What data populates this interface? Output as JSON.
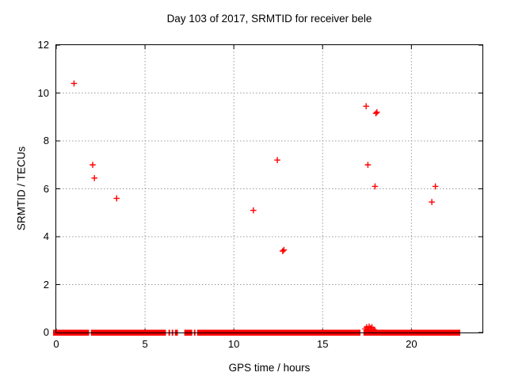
{
  "chart_data": {
    "type": "scatter",
    "title": "Day 103 of 2017, SRMTID for receiver bele",
    "xlabel": "GPS time / hours",
    "ylabel": "SRMTID / TECUs",
    "xlim": [
      0,
      24
    ],
    "ylim": [
      0,
      12
    ],
    "xticks": [
      0,
      5,
      10,
      15,
      20
    ],
    "yticks": [
      0,
      2,
      4,
      6,
      8,
      10,
      12
    ],
    "grid": true,
    "legend": "none",
    "marker": "plus",
    "marker_color": "#ff0000",
    "grid_color": "#9b9b9b",
    "border_color": "#000000",
    "series": [
      {
        "name": "SRMTID",
        "points": [
          [
            1.0,
            10.4
          ],
          [
            2.05,
            7.0
          ],
          [
            2.15,
            6.45
          ],
          [
            3.4,
            5.6
          ],
          [
            11.1,
            5.1
          ],
          [
            12.45,
            7.2
          ],
          [
            12.75,
            3.4
          ],
          [
            12.82,
            3.45
          ],
          [
            17.45,
            9.45
          ],
          [
            17.55,
            7.0
          ],
          [
            17.95,
            6.1
          ],
          [
            18.0,
            9.15
          ],
          [
            18.06,
            9.2
          ],
          [
            21.15,
            5.45
          ],
          [
            21.35,
            6.1
          ],
          [
            17.4,
            0.15
          ],
          [
            17.48,
            0.22
          ],
          [
            17.55,
            0.12
          ],
          [
            17.62,
            0.25
          ],
          [
            17.7,
            0.18
          ],
          [
            17.78,
            0.22
          ],
          [
            17.88,
            0.12
          ],
          [
            17.95,
            0.08
          ]
        ]
      }
    ],
    "zero_band_segments": [
      [
        0.0,
        1.85
      ],
      [
        1.95,
        6.18
      ],
      [
        6.32,
        6.41
      ],
      [
        6.5,
        6.59
      ],
      [
        6.68,
        6.85
      ],
      [
        7.21,
        7.66
      ],
      [
        7.75,
        7.84
      ],
      [
        7.93,
        17.13
      ],
      [
        17.3,
        22.75
      ]
    ],
    "zero_band_note": "dense run of overlapping + markers at y=0"
  }
}
